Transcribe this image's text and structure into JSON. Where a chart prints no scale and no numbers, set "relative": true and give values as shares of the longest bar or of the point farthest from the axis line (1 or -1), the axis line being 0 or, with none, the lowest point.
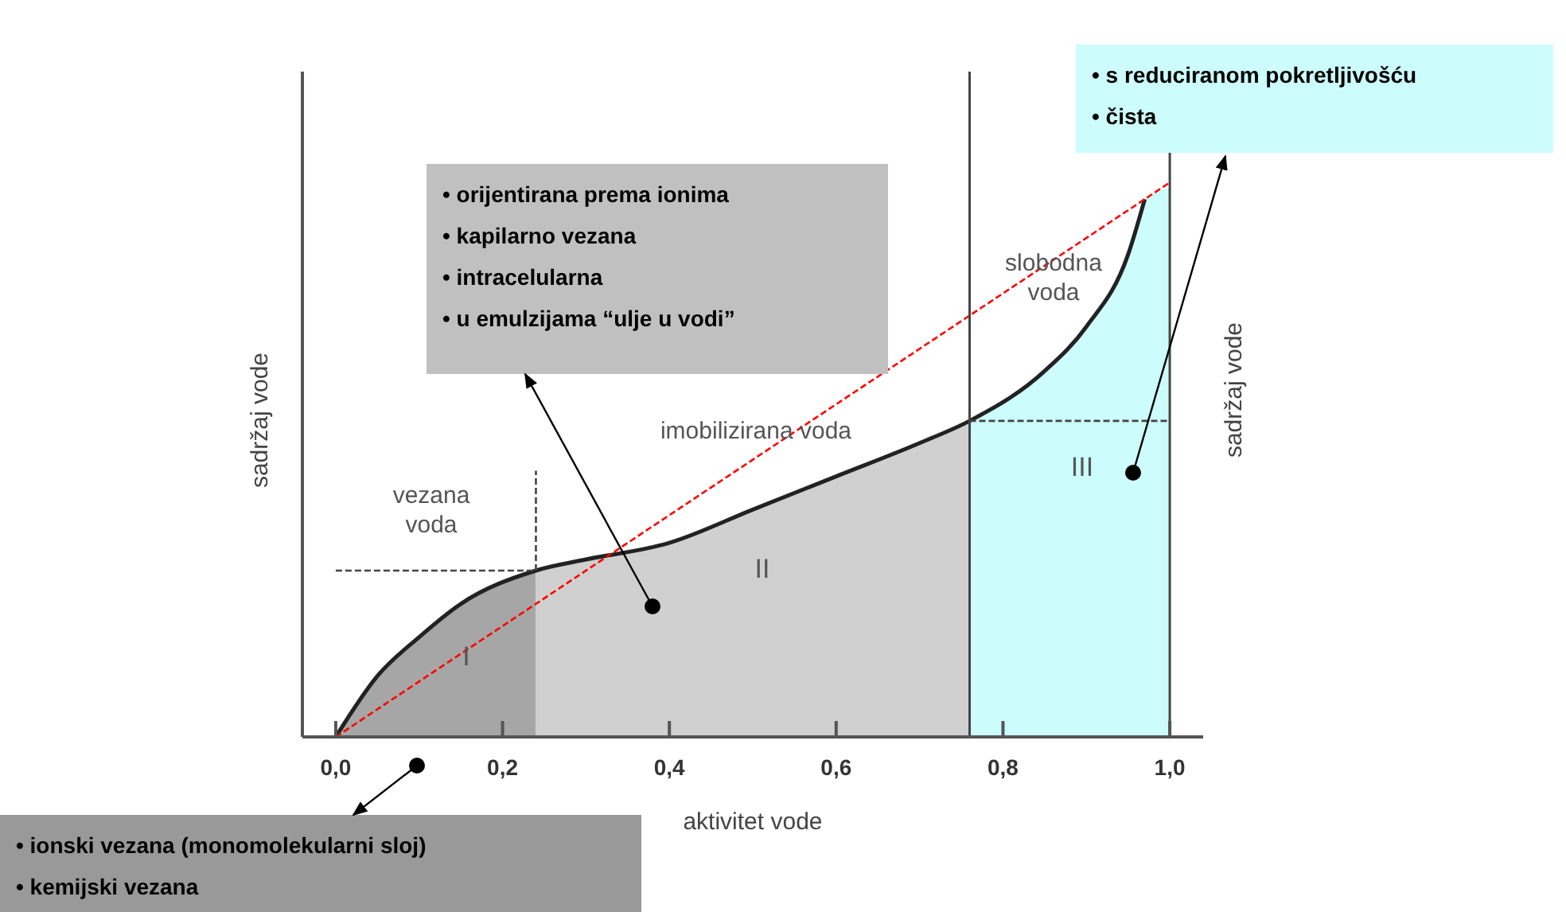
{
  "chart_data": {
    "type": "area",
    "relative": true,
    "xlabel": "aktivitet vode",
    "ylabel": "sadržaj vode",
    "y2label": "sadržaj vode",
    "xlim": [
      -0.04,
      1.04
    ],
    "xticks": [
      {
        "value": 0,
        "label": "0,0"
      },
      {
        "value": 0.2,
        "label": "0,2"
      },
      {
        "value": 0.4,
        "label": "0,4"
      },
      {
        "value": 0.6,
        "label": "0,6"
      },
      {
        "value": 0.8,
        "label": "0,8"
      },
      {
        "value": 1,
        "label": "1,0"
      }
    ],
    "grid": false,
    "legend": false,
    "series": [
      {
        "color": "#a6a6a6",
        "x": [
          0,
          0.05,
          0.1,
          0.15,
          0.24
        ],
        "values": [
          0,
          0.11,
          0.18,
          0.24,
          0.3
        ]
      },
      {
        "color": "#d0d0d0",
        "x": [
          0.24,
          0.3,
          0.4,
          0.5,
          0.6,
          0.7,
          0.76
        ],
        "values": [
          0.3,
          0.32,
          0.35,
          0.41,
          0.47,
          0.53,
          0.57
        ]
      },
      {
        "color": "#ccfcfc",
        "x": [
          0.76,
          0.85,
          0.9,
          0.95,
          0.97,
          1.0
        ],
        "values": [
          0.57,
          0.66,
          0.74,
          0.87,
          0.97,
          0.99
        ]
      },
      {
        "type": "line",
        "color": "#222222",
        "line_style": "solid",
        "marker": "none",
        "x": [
          0,
          0.05,
          0.1,
          0.15,
          0.24,
          0.3,
          0.4,
          0.5,
          0.6,
          0.7,
          0.76,
          0.85,
          0.9,
          0.95,
          0.97
        ],
        "values": [
          0,
          0.11,
          0.18,
          0.24,
          0.3,
          0.32,
          0.35,
          0.41,
          0.47,
          0.53,
          0.57,
          0.66,
          0.74,
          0.87,
          0.97
        ]
      },
      {
        "type": "line",
        "color": "#ff0000",
        "line_style": "dashed",
        "marker": "none",
        "x": [
          0,
          1
        ],
        "values": [
          0,
          1
        ]
      },
      {
        "type": "line",
        "color": "#444444",
        "line_style": "dashed",
        "marker": "none",
        "x": [
          0,
          0.24
        ],
        "values": [
          0.3,
          0.3
        ]
      },
      {
        "type": "line",
        "color": "#444444",
        "line_style": "dashed",
        "marker": "none",
        "x": [
          0.24,
          0.24
        ],
        "values": [
          0.3,
          0.48
        ]
      },
      {
        "type": "line",
        "color": "#444444",
        "line_style": "dashed",
        "marker": "none",
        "x": [
          0.76,
          1.0
        ],
        "values": [
          0.57,
          0.57
        ]
      }
    ],
    "ref_lines": [
      {
        "axis": "x",
        "value": 0.76,
        "color": "#444444"
      },
      {
        "axis": "x",
        "value": 1,
        "color": "#444444"
      }
    ],
    "annotations": [
      "vezana\nvoda",
      "imobilizirana voda",
      "slobodna\nvoda",
      "I",
      "II",
      "III",
      "• orijentirana prema ionima\n• kapilarno vezana\n• intracelularna\n• u emulzijama “ulje u vodi”",
      "• ionski vezana (monomolekularni sloj)\n• kemijski vezana",
      "• s reduciranom pokretljivošću\n• čista"
    ]
  }
}
